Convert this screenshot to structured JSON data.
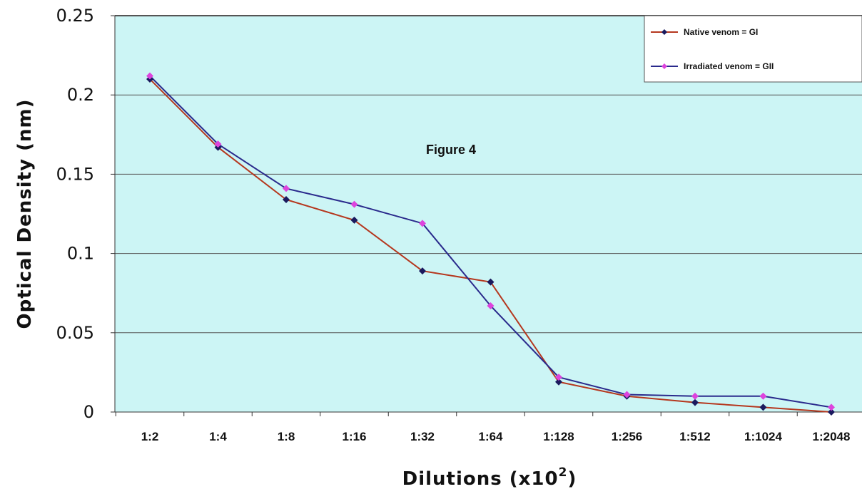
{
  "chart_data": {
    "type": "line",
    "title": "",
    "annotation": "Figure 4",
    "xlabel": "Dilutions (x10",
    "xlabel_exponent": "2",
    "xlabel_suffix": ")",
    "ylabel": "Optical Density (nm)",
    "categories": [
      "1:2",
      "1:4",
      "1:8",
      "1:16",
      "1:32",
      "1:64",
      "1:128",
      "1:256",
      "1:512",
      "1:1024",
      "1:2048"
    ],
    "ylim": [
      0,
      0.25
    ],
    "yticks": [
      0,
      0.05,
      0.1,
      0.15,
      0.2,
      0.25
    ],
    "ytick_labels": [
      "0",
      "0.05",
      "0.1",
      "0.15",
      "0.2",
      "0.25"
    ],
    "grid": "horizontal",
    "legend_position": "top-right",
    "plot_background": "#ccf5f5",
    "series": [
      {
        "name": "Native venom = GI",
        "line_color": "#b5371e",
        "marker_color": "#1a1a5e",
        "marker": "diamond",
        "values": [
          0.21,
          0.167,
          0.134,
          0.121,
          0.089,
          0.082,
          0.019,
          0.01,
          0.006,
          0.003,
          0.0
        ]
      },
      {
        "name": "Irradiated venom = GII",
        "line_color": "#2a2a8c",
        "marker_color": "#dd44dd",
        "marker": "diamond",
        "values": [
          0.212,
          0.169,
          0.141,
          0.131,
          0.119,
          0.067,
          0.022,
          0.011,
          0.01,
          0.01,
          0.003
        ]
      }
    ]
  }
}
